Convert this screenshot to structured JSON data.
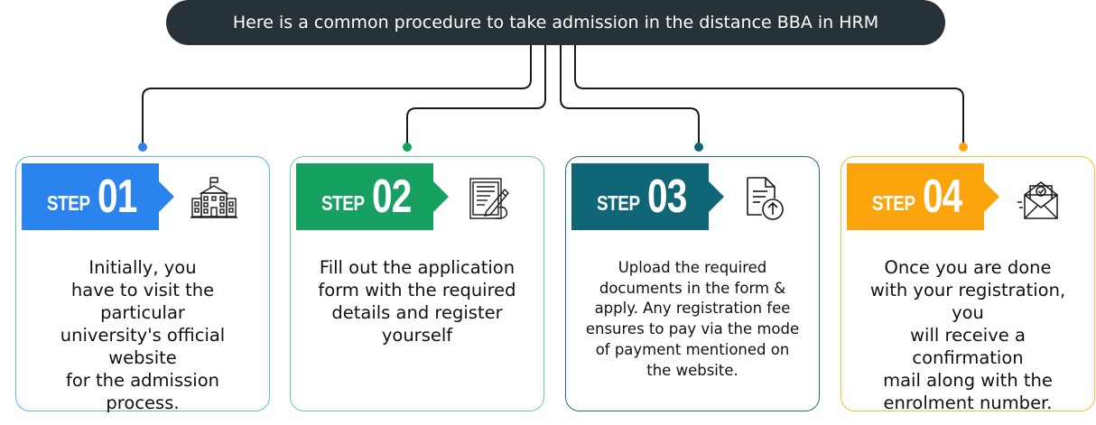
{
  "header": {
    "title": "Here is a common procedure to take admission in the distance BBA in HRM"
  },
  "colors": {
    "connector": "#1a1a1a",
    "step1": "#2b84ee",
    "step2": "#16a061",
    "step3": "#0e6677",
    "step4": "#fca40c",
    "card1_border": "#5cb6e8",
    "card2_border": "#6ccf9a",
    "card3_border": "#1f6e7e",
    "card4_border": "#fcb840",
    "dark_bar": "#263238"
  },
  "steps": [
    {
      "step_word": "STEP",
      "number": "01",
      "icon": "university-building-icon",
      "text": "Initially, you\nhave to visit the particular\nuniversity's official website\nfor the admission\nprocess."
    },
    {
      "step_word": "STEP",
      "number": "02",
      "icon": "application-form-icon",
      "text": "Fill out the application\nform with the required\ndetails and register\nyourself"
    },
    {
      "step_word": "STEP",
      "number": "03",
      "icon": "document-upload-icon",
      "text": "Upload the required\ndocuments in the form &\napply. Any registration fee\nensures to pay via the mode\nof payment mentioned on\nthe website."
    },
    {
      "step_word": "STEP",
      "number": "04",
      "icon": "confirmation-mail-icon",
      "text": "Once you are done\nwith your registration, you\nwill receive a confirmation\nmail along with the\nenrolment number."
    }
  ]
}
